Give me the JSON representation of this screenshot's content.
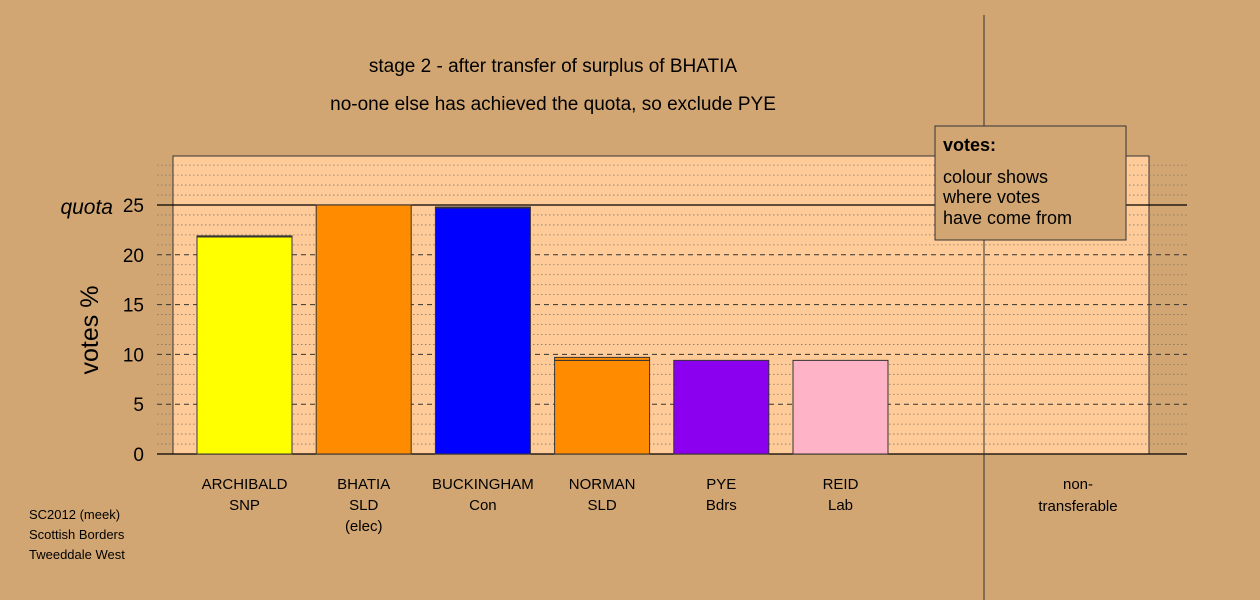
{
  "chart_data": {
    "type": "bar",
    "title": "stage 2 - after transfer of surplus of BHATIA",
    "subtitle": "no-one else has achieved the quota, so exclude PYE",
    "ylabel": "votes %",
    "ylim": [
      0,
      30
    ],
    "yticks": [
      0,
      5,
      10,
      15,
      20,
      25
    ],
    "quota": {
      "label": "quota",
      "value": 25
    },
    "grid": true,
    "categories": [
      {
        "name": "ARCHIBALD",
        "party": "SNP",
        "note": ""
      },
      {
        "name": "BHATIA",
        "party": "SLD",
        "note": "(elec)"
      },
      {
        "name": "BUCKINGHAM",
        "party": "Con",
        "note": ""
      },
      {
        "name": "NORMAN",
        "party": "SLD",
        "note": ""
      },
      {
        "name": "PYE",
        "party": "Bdrs",
        "note": ""
      },
      {
        "name": "REID",
        "party": "Lab",
        "note": ""
      }
    ],
    "bars": [
      {
        "segments": [
          {
            "value": 21.8,
            "color": "#ffff00"
          },
          {
            "value": 0.1,
            "color": "#ff8c00"
          }
        ]
      },
      {
        "segments": [
          {
            "value": 25.0,
            "color": "#ff8c00"
          }
        ]
      },
      {
        "segments": [
          {
            "value": 24.7,
            "color": "#0000ff"
          },
          {
            "value": 0.1,
            "color": "#ff8c00"
          }
        ]
      },
      {
        "segments": [
          {
            "value": 9.4,
            "color": "#ff8c00"
          },
          {
            "value": 0.3,
            "color": "#ff8c00"
          }
        ]
      },
      {
        "segments": [
          {
            "value": 9.4,
            "color": "#8b00ee"
          }
        ]
      },
      {
        "segments": [
          {
            "value": 9.4,
            "color": "#ffb3c6"
          }
        ]
      }
    ],
    "nontransferable": {
      "label_line1": "non-",
      "label_line2": "transferable",
      "value": 0
    },
    "legend": {
      "position": "top-right",
      "title": "votes:",
      "lines": [
        "colour shows",
        "where votes",
        "have come from"
      ]
    },
    "colors": {
      "background": "#d2a673",
      "plot_area": "#ffcc99"
    }
  },
  "footer": {
    "line1": "SC2012 (meek)",
    "line2": "Scottish Borders",
    "line3": "Tweeddale West"
  }
}
